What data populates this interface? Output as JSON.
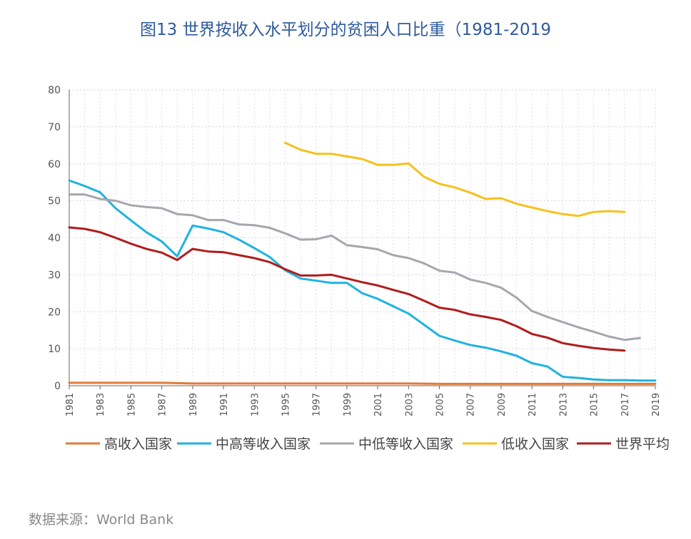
{
  "title": "图13  世界按收入水平划分的贫困人口比重（1981-2019",
  "source": "数据来源：World Bank",
  "chart_data": {
    "type": "line",
    "xlim": [
      1981,
      2019
    ],
    "ylim": [
      0,
      80
    ],
    "y_ticks": [
      0,
      10,
      20,
      30,
      40,
      50,
      60,
      70,
      80
    ],
    "x_ticks": [
      1981,
      1983,
      1985,
      1987,
      1989,
      1991,
      1993,
      1995,
      1997,
      1999,
      2001,
      2003,
      2005,
      2007,
      2009,
      2011,
      2013,
      2015,
      2017,
      2019
    ],
    "grid": true,
    "legend_position": "bottom",
    "series": [
      {
        "name": "高收入国家",
        "color": "#e07b39",
        "x": [
          1981,
          1983,
          1985,
          1987,
          1989,
          1991,
          1993,
          1995,
          1997,
          1999,
          2001,
          2003,
          2005,
          2007,
          2009,
          2011,
          2013,
          2015,
          2017,
          2019
        ],
        "values": [
          0.8,
          0.8,
          0.8,
          0.8,
          0.6,
          0.6,
          0.6,
          0.6,
          0.6,
          0.6,
          0.6,
          0.6,
          0.5,
          0.5,
          0.5,
          0.5,
          0.5,
          0.5,
          0.5,
          0.5
        ]
      },
      {
        "name": "中高等收入国家",
        "color": "#1fb3e0",
        "x": [
          1981,
          1982,
          1983,
          1984,
          1985,
          1986,
          1987,
          1988,
          1989,
          1990,
          1991,
          1992,
          1993,
          1994,
          1995,
          1996,
          1997,
          1998,
          1999,
          2000,
          2001,
          2002,
          2003,
          2004,
          2005,
          2006,
          2007,
          2008,
          2009,
          2010,
          2011,
          2012,
          2013,
          2014,
          2015,
          2016,
          2017,
          2018,
          2019
        ],
        "values": [
          55.5,
          54,
          52.3,
          48,
          44.7,
          41.5,
          39,
          35,
          43.3,
          42.5,
          41.5,
          39.5,
          37.2,
          34.8,
          31.2,
          29,
          28.4,
          27.8,
          27.8,
          25,
          23.5,
          21.5,
          19.5,
          16.5,
          13.5,
          12.2,
          11,
          10.3,
          9.3,
          8.1,
          6.1,
          5.2,
          2.4,
          2.1,
          1.7,
          1.5,
          1.5,
          1.4,
          1.4
        ]
      },
      {
        "name": "中低等收入国家",
        "color": "#a6a6ae",
        "x": [
          1981,
          1982,
          1983,
          1984,
          1985,
          1986,
          1987,
          1988,
          1989,
          1990,
          1991,
          1992,
          1993,
          1994,
          1995,
          1996,
          1997,
          1998,
          1999,
          2000,
          2001,
          2002,
          2003,
          2004,
          2005,
          2006,
          2007,
          2008,
          2009,
          2010,
          2011,
          2012,
          2013,
          2014,
          2015,
          2016,
          2017,
          2018
        ],
        "values": [
          51.7,
          51.7,
          50.5,
          50,
          48.8,
          48.3,
          48,
          46.4,
          46.1,
          44.8,
          44.8,
          43.6,
          43.4,
          42.7,
          41.2,
          39.5,
          39.6,
          40.6,
          38,
          37.5,
          36.9,
          35.3,
          34.5,
          33.1,
          31.1,
          30.6,
          28.7,
          27.8,
          26.5,
          23.8,
          20.2,
          18.6,
          17.2,
          15.8,
          14.6,
          13.3,
          12.4,
          12.9
        ]
      },
      {
        "name": "低收入国家",
        "color": "#f5c21a",
        "x": [
          1995,
          1996,
          1997,
          1998,
          1999,
          2000,
          2001,
          2002,
          2003,
          2004,
          2005,
          2006,
          2007,
          2008,
          2009,
          2010,
          2011,
          2012,
          2013,
          2014,
          2015,
          2016,
          2017
        ],
        "values": [
          65.7,
          63.8,
          62.7,
          62.7,
          62,
          61.3,
          59.7,
          59.7,
          60.1,
          56.5,
          54.6,
          53.6,
          52.2,
          50.5,
          50.7,
          49.2,
          48.2,
          47.2,
          46.4,
          45.9,
          47,
          47.2,
          47
        ]
      },
      {
        "name": "世界平均",
        "color": "#b01c1c",
        "x": [
          1981,
          1982,
          1983,
          1984,
          1985,
          1986,
          1987,
          1988,
          1989,
          1990,
          1991,
          1992,
          1993,
          1994,
          1995,
          1996,
          1997,
          1998,
          1999,
          2000,
          2001,
          2002,
          2003,
          2004,
          2005,
          2006,
          2007,
          2008,
          2009,
          2010,
          2011,
          2012,
          2013,
          2014,
          2015,
          2016,
          2017
        ],
        "values": [
          42.8,
          42.4,
          41.5,
          40,
          38.4,
          37,
          36,
          34,
          37,
          36.3,
          36.1,
          35.3,
          34.5,
          33.4,
          31.5,
          29.8,
          29.8,
          30,
          29,
          28,
          27.1,
          25.9,
          24.8,
          23,
          21.1,
          20.5,
          19.3,
          18.6,
          17.8,
          16.1,
          14,
          13,
          11.5,
          10.8,
          10.2,
          9.8,
          9.5
        ]
      }
    ]
  }
}
